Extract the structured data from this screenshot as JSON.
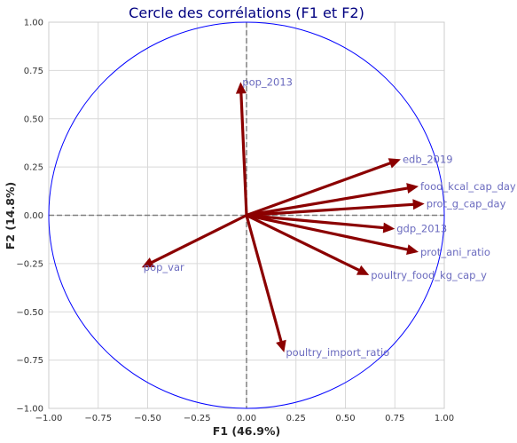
{
  "chart_data": {
    "type": "scatter",
    "title": "Cercle des corrélations (F1 et F2)",
    "xlabel": "F1 (46.9%)",
    "ylabel": "F2 (14.8%)",
    "xlim": [
      -1.0,
      1.0
    ],
    "ylim": [
      -1.0,
      1.0
    ],
    "xticks": [
      "−1.00",
      "−0.75",
      "−0.50",
      "−0.25",
      "0.00",
      "0.25",
      "0.50",
      "0.75",
      "1.00"
    ],
    "yticks": [
      "−1.00",
      "−0.75",
      "−0.50",
      "−0.25",
      "0.00",
      "0.25",
      "0.50",
      "0.75",
      "1.00"
    ],
    "tick_values": [
      -1.0,
      -0.75,
      -0.5,
      -0.25,
      0.0,
      0.25,
      0.5,
      0.75,
      1.0
    ],
    "grid": true,
    "unit_circle": true,
    "colors": {
      "arrow": "#8b0000",
      "circle": "#0000ff",
      "label": "#6b6bbf",
      "title": "#000080"
    },
    "vectors": [
      {
        "name": "pop_2013",
        "x": -0.03,
        "y": 0.69
      },
      {
        "name": "edb_2019",
        "x": 0.78,
        "y": 0.29
      },
      {
        "name": "food_kcal_cap_day",
        "x": 0.87,
        "y": 0.15
      },
      {
        "name": "prot_g_cap_day",
        "x": 0.9,
        "y": 0.06
      },
      {
        "name": "gdp_2013",
        "x": 0.75,
        "y": -0.07
      },
      {
        "name": "prot_ani_ratio",
        "x": 0.87,
        "y": -0.19
      },
      {
        "name": "poultry_food_kg_cap_y",
        "x": 0.62,
        "y": -0.31
      },
      {
        "name": "poultry_import_ratio",
        "x": 0.19,
        "y": -0.71
      },
      {
        "name": "pop_var",
        "x": -0.53,
        "y": -0.27
      }
    ]
  }
}
